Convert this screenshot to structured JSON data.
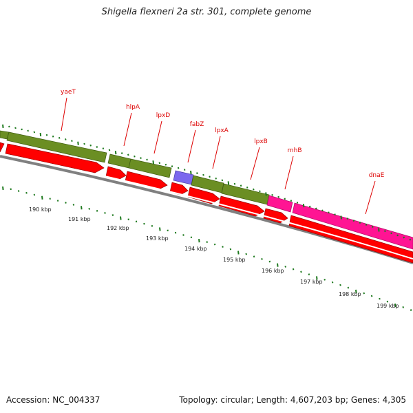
{
  "title": "Shigella flexneri 2a str. 301, complete genome",
  "footer": {
    "accession": "Accession: NC_004337",
    "topology": "Topology: circular; Length: 4,607,203 bp; Genes: 4,305"
  },
  "colors": {
    "backbone": "#808080",
    "tick": "#1f7a1f",
    "gene_label": "#dd0000",
    "feature_green": "#6b8e23",
    "feature_red": "#ff0000",
    "feature_purple": "#7b68ee",
    "feature_magenta": "#ff1493"
  },
  "scale_labels": [
    "190 kbp",
    "191 kbp",
    "192 kbp",
    "193 kbp",
    "194 kbp",
    "195 kbp",
    "196 kbp",
    "197 kbp",
    "198 kbp",
    "199 kbp"
  ],
  "gene_labels": [
    "yaeT",
    "hlpA",
    "lpxD",
    "fabZ",
    "lpxA",
    "lpxB",
    "rnhB",
    "dnaE"
  ]
}
